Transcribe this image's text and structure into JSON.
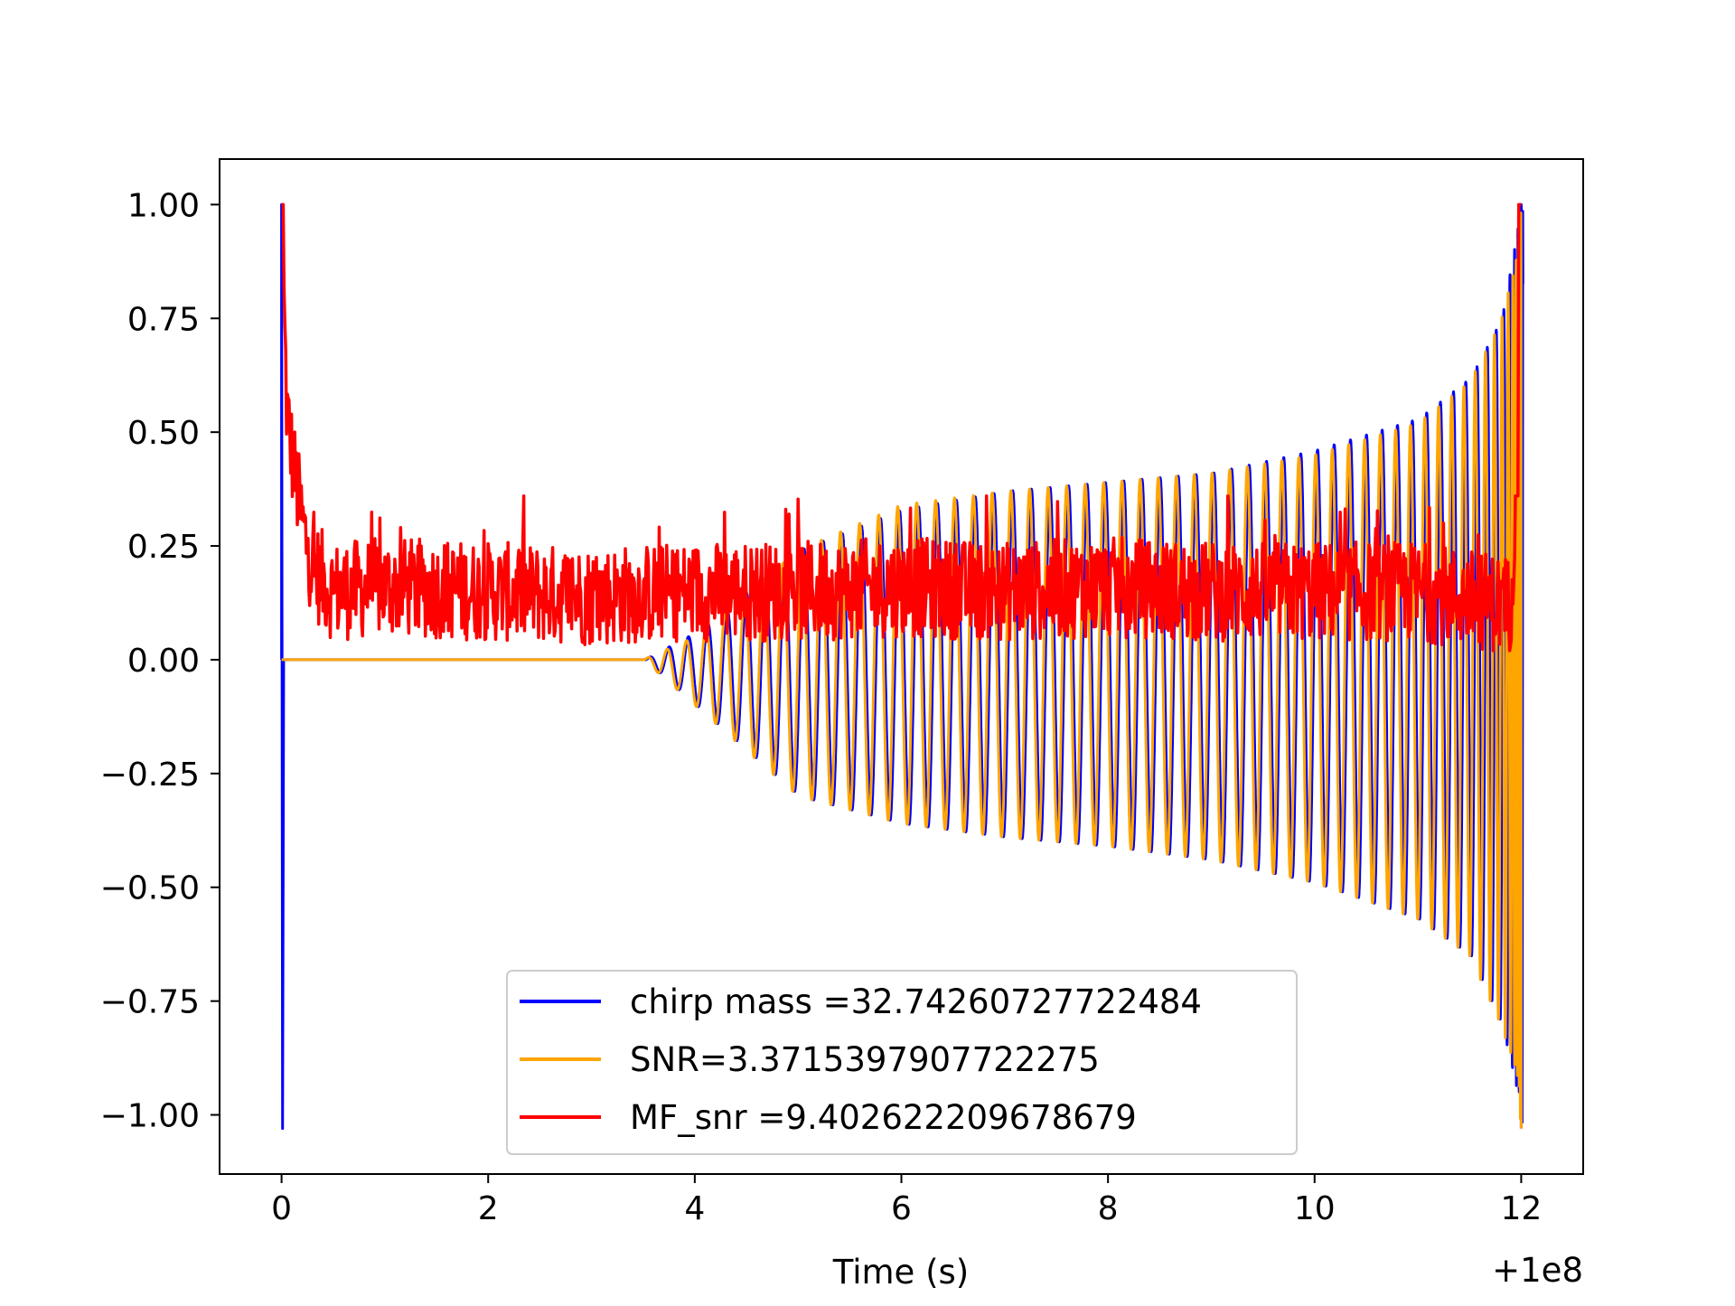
{
  "chart_data": {
    "type": "line",
    "title": "",
    "xlabel": "Time (s)",
    "ylabel": "",
    "x_offset_text": "+1e8",
    "xlim": [
      -0.6,
      12.6
    ],
    "ylim": [
      -1.13,
      1.1
    ],
    "x_ticks": [
      0,
      2,
      4,
      6,
      8,
      10,
      12
    ],
    "x_tick_labels": [
      "0",
      "2",
      "4",
      "6",
      "8",
      "10",
      "12"
    ],
    "y_ticks": [
      1.0,
      0.75,
      0.5,
      0.25,
      0.0,
      -0.25,
      -0.5,
      -0.75,
      -1.0
    ],
    "y_tick_labels": [
      "1.00",
      "0.75",
      "0.50",
      "0.25",
      "0.00",
      "−0.25",
      "−0.50",
      "−0.75",
      "−1.00"
    ],
    "grid": false,
    "legend_position": "lower-center",
    "series": [
      {
        "name": "chirp mass =32.74260727722484",
        "color": "#0000ff",
        "description": "normalized chirp template: spike at start, then chirp oscillation growing to +/-1 at 12",
        "x": [
          0.0,
          0.01,
          0.02,
          0.03,
          3.5,
          4.0,
          5.0,
          6.0,
          7.0,
          8.0,
          9.0,
          10.0,
          11.0,
          11.5,
          11.8,
          11.95,
          12.0
        ],
        "envelope_upper": [
          0.0,
          1.0,
          -1.03,
          0.0,
          0.0,
          0.06,
          0.24,
          0.33,
          0.37,
          0.39,
          0.41,
          0.46,
          0.53,
          0.62,
          0.75,
          0.95,
          1.0
        ],
        "envelope_lower": [
          0.0,
          1.0,
          -1.03,
          0.0,
          0.0,
          -0.1,
          -0.3,
          -0.36,
          -0.39,
          -0.41,
          -0.44,
          -0.49,
          -0.57,
          -0.65,
          -0.8,
          -0.95,
          -1.03
        ]
      },
      {
        "name": "SNR=3.3715397907722275",
        "color": "#ffa500",
        "description": "chirp signal: flat zero until ~3.5, then oscillation with growing amplitude, dense near 12",
        "x": [
          0.0,
          3.5,
          4.0,
          5.0,
          6.0,
          7.0,
          8.0,
          9.0,
          10.0,
          11.0,
          11.5,
          11.8,
          11.95,
          12.0
        ],
        "envelope_upper": [
          0.0,
          0.0,
          0.05,
          0.24,
          0.34,
          0.37,
          0.39,
          0.41,
          0.45,
          0.52,
          0.61,
          0.74,
          0.88,
          1.0
        ],
        "envelope_lower": [
          0.0,
          0.0,
          -0.1,
          -0.3,
          -0.36,
          -0.39,
          -0.41,
          -0.44,
          -0.49,
          -0.57,
          -0.65,
          -0.8,
          -0.9,
          -1.03
        ]
      },
      {
        "name": "MF_snr =9.402622209678679",
        "color": "#ff0000",
        "description": "matched-filter SNR: peaks at 1.0 at t=0, decays to noisy band around 0.15, spikes to 1.0 at t=12",
        "x": [
          0.0,
          0.05,
          0.1,
          0.2,
          0.3,
          0.5,
          1.0,
          2.0,
          3.0,
          4.0,
          5.0,
          6.0,
          7.0,
          8.0,
          9.0,
          10.0,
          11.0,
          11.9,
          11.95,
          12.0
        ],
        "y": [
          1.0,
          0.55,
          0.45,
          0.3,
          0.2,
          0.15,
          0.16,
          0.15,
          0.14,
          0.15,
          0.15,
          0.16,
          0.15,
          0.16,
          0.15,
          0.15,
          0.15,
          0.12,
          0.4,
          1.0
        ],
        "noise_band": [
          0.02,
          0.36
        ]
      }
    ]
  }
}
